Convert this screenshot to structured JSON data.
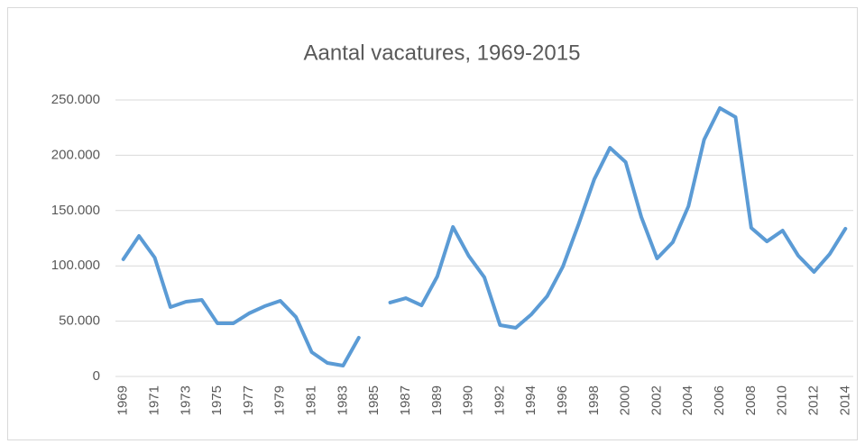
{
  "chart_data": {
    "type": "line",
    "title": "Aantal vacatures, 1969-2015",
    "categories": [
      "1969",
      null,
      "1971",
      null,
      "1973",
      null,
      "1975",
      null,
      "1977",
      null,
      "1979",
      null,
      "1981",
      null,
      "1983",
      null,
      "1985",
      null,
      "1987",
      null,
      "1989",
      null,
      "1990",
      null,
      "1992",
      null,
      "1994",
      null,
      "1996",
      null,
      "1998",
      null,
      "2000",
      null,
      "2002",
      null,
      "2004",
      null,
      "2006",
      null,
      "2008",
      null,
      "2010",
      null,
      "2012",
      null,
      "2014"
    ],
    "series": [
      {
        "name": "Aantal vacatures",
        "color": "#5b9bd5",
        "values": [
          106000,
          127000,
          107500,
          62700,
          67600,
          69200,
          48000,
          48000,
          57000,
          63500,
          68400,
          53700,
          22000,
          12200,
          9800,
          35000,
          null,
          66800,
          70800,
          64300,
          90400,
          135200,
          109100,
          89600,
          46400,
          44000,
          56200,
          72500,
          99300,
          137600,
          178300,
          206800,
          193800,
          144100,
          106700,
          121300,
          153900,
          214200,
          242700,
          234500,
          134400,
          122100,
          131900,
          109100,
          94500,
          110700,
          133600
        ]
      }
    ],
    "ylim": [
      0,
      250000
    ],
    "yticks": [
      0,
      {
        "value": 50000,
        "label": "50.000"
      },
      {
        "value": 100000,
        "label": "100.000"
      },
      {
        "value": 150000,
        "label": "150.000"
      },
      {
        "value": 200000,
        "label": "200.000"
      },
      {
        "value": 250000,
        "label": "250.000"
      }
    ],
    "grid": true
  }
}
